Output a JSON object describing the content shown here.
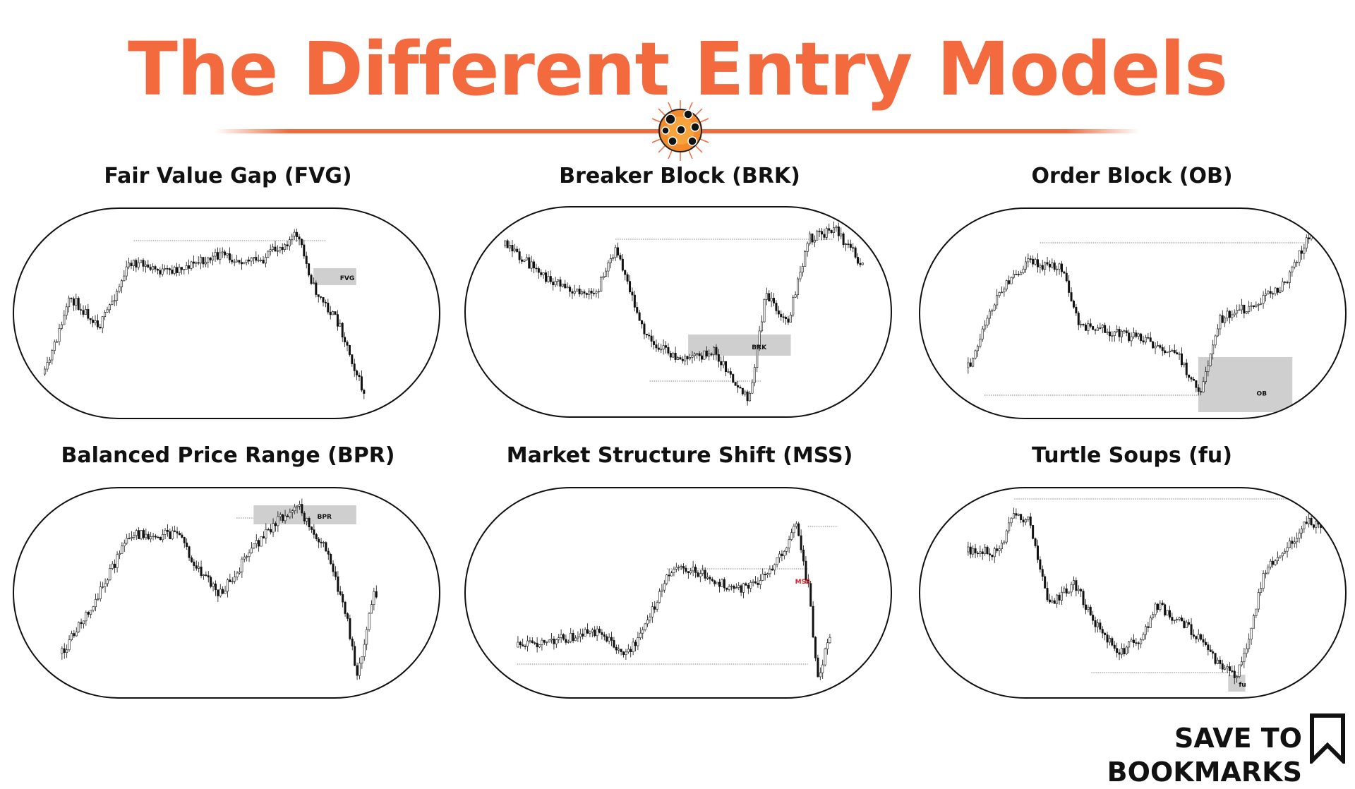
{
  "title": "The Different Entry Models",
  "accent_color": "#f26a3d",
  "logo_icon": "compass-logo-icon",
  "panels": [
    {
      "title": "Fair Value Gap (FVG)",
      "zone_label": "FVG",
      "label_color": "#111111"
    },
    {
      "title": "Breaker Block (BRK)",
      "zone_label": "BRK",
      "label_color": "#111111"
    },
    {
      "title": "Order Block (OB)",
      "zone_label": "OB",
      "label_color": "#111111"
    },
    {
      "title": "Balanced Price Range (BPR)",
      "zone_label": "BPR",
      "label_color": "#111111"
    },
    {
      "title": "Market Structure Shift (MSS)",
      "zone_label": "MSS",
      "label_color": "#e0242b"
    },
    {
      "title": "Turtle Soups (fu)",
      "zone_label": "fu",
      "label_color": "#111111"
    }
  ],
  "footer": {
    "cta": "SAVE TO BOOKMARKS",
    "icon": "bookmark-icon"
  }
}
